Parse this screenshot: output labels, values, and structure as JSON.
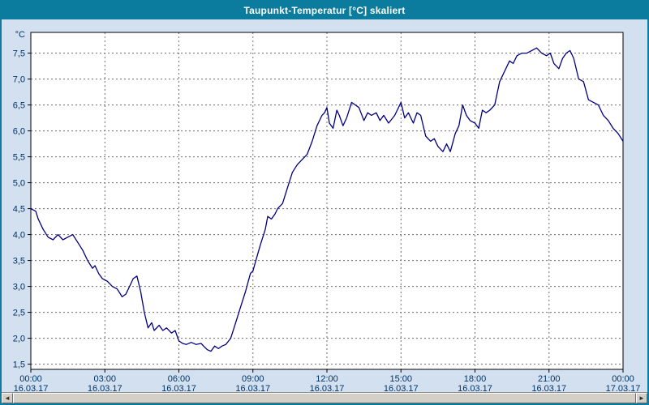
{
  "window": {
    "title": "Taupunkt-Temperatur [°C] skaliert"
  },
  "theme": {
    "titlebar_bg": "#0b7c9d",
    "frame_bg": "#d2e0f0",
    "plot_bg": "#ffffff",
    "line_color": "#000080",
    "grid_color": "#6e6e6e",
    "axis_color": "#000000",
    "label_color": "#003366",
    "scrollbar_bg": "#d8d5cf"
  },
  "chart_data": {
    "type": "line",
    "title": "Taupunkt-Temperatur [°C] skaliert",
    "y_unit": "°C",
    "ylabel": "Taupunkt-Temperatur [°C]",
    "ylim": [
      1.4,
      7.9
    ],
    "xlim_hours": [
      0,
      24
    ],
    "grid": "dashed",
    "legend": "none",
    "y_ticks": [
      {
        "value": 7.5,
        "label": "7,5"
      },
      {
        "value": 7.0,
        "label": "7,0"
      },
      {
        "value": 6.5,
        "label": "6,5"
      },
      {
        "value": 6.0,
        "label": "6,0"
      },
      {
        "value": 5.5,
        "label": "5,5"
      },
      {
        "value": 5.0,
        "label": "5,0"
      },
      {
        "value": 4.5,
        "label": "4,5"
      },
      {
        "value": 4.0,
        "label": "4,0"
      },
      {
        "value": 3.5,
        "label": "3,5"
      },
      {
        "value": 3.0,
        "label": "3,0"
      },
      {
        "value": 2.5,
        "label": "2,5"
      },
      {
        "value": 2.0,
        "label": "2,0"
      },
      {
        "value": 1.5,
        "label": "1,5"
      }
    ],
    "x_ticks": [
      {
        "hour": 0,
        "time": "00:00",
        "date": "16.03.17"
      },
      {
        "hour": 3,
        "time": "03:00",
        "date": "16.03.17"
      },
      {
        "hour": 6,
        "time": "06:00",
        "date": "16.03.17"
      },
      {
        "hour": 9,
        "time": "09:00",
        "date": "16.03.17"
      },
      {
        "hour": 12,
        "time": "12:00",
        "date": "16.03.17"
      },
      {
        "hour": 15,
        "time": "15:00",
        "date": "16.03.17"
      },
      {
        "hour": 18,
        "time": "18:00",
        "date": "16.03.17"
      },
      {
        "hour": 21,
        "time": "21:00",
        "date": "16.03.17"
      },
      {
        "hour": 24,
        "time": "00:00",
        "date": "17.03.17"
      }
    ],
    "series": [
      {
        "name": "Taupunkt-Temperatur",
        "points": [
          [
            0,
            4.5
          ],
          [
            0.2,
            4.45
          ],
          [
            0.3,
            4.3
          ],
          [
            0.5,
            4.1
          ],
          [
            0.7,
            3.95
          ],
          [
            0.9,
            3.9
          ],
          [
            1.1,
            4.0
          ],
          [
            1.3,
            3.9
          ],
          [
            1.5,
            3.95
          ],
          [
            1.7,
            4.0
          ],
          [
            1.9,
            3.85
          ],
          [
            2.1,
            3.7
          ],
          [
            2.3,
            3.5
          ],
          [
            2.5,
            3.35
          ],
          [
            2.6,
            3.4
          ],
          [
            2.75,
            3.25
          ],
          [
            2.9,
            3.15
          ],
          [
            3.1,
            3.1
          ],
          [
            3.3,
            3.0
          ],
          [
            3.5,
            2.95
          ],
          [
            3.7,
            2.8
          ],
          [
            3.85,
            2.85
          ],
          [
            4.0,
            3.0
          ],
          [
            4.15,
            3.15
          ],
          [
            4.3,
            3.2
          ],
          [
            4.45,
            2.9
          ],
          [
            4.6,
            2.5
          ],
          [
            4.75,
            2.2
          ],
          [
            4.9,
            2.3
          ],
          [
            5.0,
            2.15
          ],
          [
            5.2,
            2.25
          ],
          [
            5.35,
            2.15
          ],
          [
            5.5,
            2.2
          ],
          [
            5.7,
            2.1
          ],
          [
            5.85,
            2.15
          ],
          [
            6.0,
            1.95
          ],
          [
            6.15,
            1.9
          ],
          [
            6.3,
            1.88
          ],
          [
            6.5,
            1.92
          ],
          [
            6.7,
            1.88
          ],
          [
            6.9,
            1.9
          ],
          [
            7.0,
            1.85
          ],
          [
            7.15,
            1.78
          ],
          [
            7.3,
            1.75
          ],
          [
            7.45,
            1.85
          ],
          [
            7.6,
            1.8
          ],
          [
            7.75,
            1.85
          ],
          [
            7.9,
            1.88
          ],
          [
            8.1,
            2.0
          ],
          [
            8.3,
            2.3
          ],
          [
            8.5,
            2.6
          ],
          [
            8.7,
            2.9
          ],
          [
            8.9,
            3.25
          ],
          [
            9.0,
            3.3
          ],
          [
            9.15,
            3.55
          ],
          [
            9.3,
            3.8
          ],
          [
            9.5,
            4.1
          ],
          [
            9.6,
            4.35
          ],
          [
            9.75,
            4.3
          ],
          [
            9.9,
            4.4
          ],
          [
            10.0,
            4.5
          ],
          [
            10.2,
            4.6
          ],
          [
            10.4,
            4.9
          ],
          [
            10.6,
            5.2
          ],
          [
            10.8,
            5.35
          ],
          [
            11.0,
            5.45
          ],
          [
            11.2,
            5.55
          ],
          [
            11.4,
            5.8
          ],
          [
            11.6,
            6.1
          ],
          [
            11.8,
            6.3
          ],
          [
            11.9,
            6.35
          ],
          [
            12.0,
            6.45
          ],
          [
            12.1,
            6.15
          ],
          [
            12.25,
            6.05
          ],
          [
            12.4,
            6.4
          ],
          [
            12.5,
            6.3
          ],
          [
            12.65,
            6.1
          ],
          [
            12.8,
            6.25
          ],
          [
            13.0,
            6.55
          ],
          [
            13.15,
            6.5
          ],
          [
            13.3,
            6.45
          ],
          [
            13.5,
            6.2
          ],
          [
            13.65,
            6.35
          ],
          [
            13.8,
            6.3
          ],
          [
            14.0,
            6.35
          ],
          [
            14.15,
            6.2
          ],
          [
            14.3,
            6.3
          ],
          [
            14.5,
            6.15
          ],
          [
            14.75,
            6.3
          ],
          [
            15.0,
            6.55
          ],
          [
            15.15,
            6.25
          ],
          [
            15.3,
            6.35
          ],
          [
            15.5,
            6.15
          ],
          [
            15.65,
            6.35
          ],
          [
            15.8,
            6.3
          ],
          [
            16.0,
            5.9
          ],
          [
            16.2,
            5.8
          ],
          [
            16.35,
            5.85
          ],
          [
            16.5,
            5.7
          ],
          [
            16.7,
            5.6
          ],
          [
            16.85,
            5.75
          ],
          [
            17.0,
            5.6
          ],
          [
            17.2,
            5.95
          ],
          [
            17.35,
            6.1
          ],
          [
            17.5,
            6.5
          ],
          [
            17.65,
            6.3
          ],
          [
            17.8,
            6.2
          ],
          [
            18.0,
            6.15
          ],
          [
            18.15,
            6.05
          ],
          [
            18.3,
            6.4
          ],
          [
            18.45,
            6.35
          ],
          [
            18.6,
            6.4
          ],
          [
            18.8,
            6.5
          ],
          [
            19.0,
            6.95
          ],
          [
            19.2,
            7.15
          ],
          [
            19.4,
            7.35
          ],
          [
            19.55,
            7.3
          ],
          [
            19.7,
            7.45
          ],
          [
            19.9,
            7.5
          ],
          [
            20.1,
            7.5
          ],
          [
            20.3,
            7.55
          ],
          [
            20.5,
            7.6
          ],
          [
            20.7,
            7.5
          ],
          [
            20.9,
            7.45
          ],
          [
            21.05,
            7.5
          ],
          [
            21.2,
            7.3
          ],
          [
            21.4,
            7.2
          ],
          [
            21.55,
            7.4
          ],
          [
            21.7,
            7.5
          ],
          [
            21.85,
            7.55
          ],
          [
            22.0,
            7.4
          ],
          [
            22.2,
            7.0
          ],
          [
            22.4,
            6.95
          ],
          [
            22.6,
            6.6
          ],
          [
            22.8,
            6.55
          ],
          [
            23.0,
            6.5
          ],
          [
            23.2,
            6.3
          ],
          [
            23.4,
            6.2
          ],
          [
            23.6,
            6.05
          ],
          [
            23.8,
            5.95
          ],
          [
            24.0,
            5.8
          ]
        ]
      }
    ]
  },
  "scrollbar": {
    "left_arrow": "◄",
    "right_arrow": "►"
  }
}
